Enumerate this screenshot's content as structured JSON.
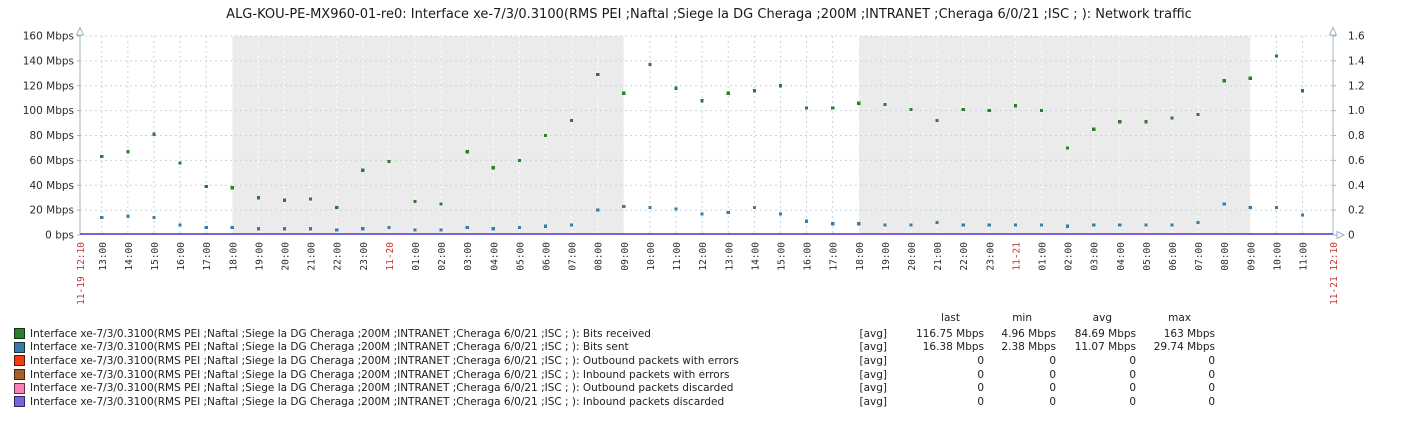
{
  "title": "ALG-KOU-PE-MX960-01-re0: Interface xe-7/3/0.3100(RMS PEI ;Naftal ;Siege la DG Cheraga ;200M ;INTRANET ;Cheraga 6/0/21 ;ISC ; ): Network traffic",
  "colors": {
    "band": "#EBEBEB",
    "grid": "#C9D5DD",
    "grid_on_band": "#FFFFFF",
    "axis": "#9FB4C2",
    "tick_text": "#2B2B2B",
    "date_text_red": "#C63535",
    "zero_line": "#5B53C8",
    "bits_received": "#2E7D2B",
    "bits_sent": "#3A7CA8",
    "outbound_errors": "#F23A14",
    "inbound_errors": "#A4612C",
    "outbound_discarded": "#FB7EB6",
    "inbound_discarded": "#7A63DB"
  },
  "chart_data": {
    "type": "scatter",
    "title": "ALG-KOU-PE-MX960-01-re0: Interface xe-7/3/0.3100(RMS PEI ;Naftal ;Siege la DG Cheraga ;200M ;INTRANET ;Cheraga 6/0/21 ;ISC ; ): Network traffic",
    "grid": true,
    "legend_position": "bottom",
    "x_axis": {
      "start_label": "11-19 12:10",
      "end_label": "11-21 12:10",
      "span_minutes": 2880
    },
    "ylim_left": [
      0,
      160
    ],
    "ylim_right": [
      0,
      1.6
    ],
    "y_unit_left": "Mbps",
    "y_ticks_left": [
      "0 bps",
      "20 Mbps",
      "40 Mbps",
      "60 Mbps",
      "80 Mbps",
      "100 Mbps",
      "120 Mbps",
      "140 Mbps",
      "160 Mbps"
    ],
    "y_ticks_right": [
      "0",
      "0.2",
      "0.4",
      "0.6",
      "0.8",
      "1.0",
      "1.2",
      "1.4",
      "1.6"
    ],
    "non_working_bands_minutes": [
      [
        350,
        1250
      ],
      [
        1790,
        2690
      ]
    ],
    "x_ticks": [
      {
        "t": 0,
        "label": "11-19 12:10",
        "red": true
      },
      {
        "t": 50,
        "label": "13:00"
      },
      {
        "t": 110,
        "label": "14:00"
      },
      {
        "t": 170,
        "label": "15:00"
      },
      {
        "t": 230,
        "label": "16:00"
      },
      {
        "t": 290,
        "label": "17:00"
      },
      {
        "t": 350,
        "label": "18:00"
      },
      {
        "t": 410,
        "label": "19:00"
      },
      {
        "t": 470,
        "label": "20:00"
      },
      {
        "t": 530,
        "label": "21:00"
      },
      {
        "t": 590,
        "label": "22:00"
      },
      {
        "t": 650,
        "label": "23:00"
      },
      {
        "t": 710,
        "label": "11-20",
        "red": true
      },
      {
        "t": 770,
        "label": "01:00"
      },
      {
        "t": 830,
        "label": "02:00"
      },
      {
        "t": 890,
        "label": "03:00"
      },
      {
        "t": 950,
        "label": "04:00"
      },
      {
        "t": 1010,
        "label": "05:00"
      },
      {
        "t": 1070,
        "label": "06:00"
      },
      {
        "t": 1130,
        "label": "07:00"
      },
      {
        "t": 1190,
        "label": "08:00"
      },
      {
        "t": 1250,
        "label": "09:00"
      },
      {
        "t": 1310,
        "label": "10:00"
      },
      {
        "t": 1370,
        "label": "11:00"
      },
      {
        "t": 1430,
        "label": "12:00"
      },
      {
        "t": 1490,
        "label": "13:00"
      },
      {
        "t": 1550,
        "label": "14:00"
      },
      {
        "t": 1610,
        "label": "15:00"
      },
      {
        "t": 1670,
        "label": "16:00"
      },
      {
        "t": 1730,
        "label": "17:00"
      },
      {
        "t": 1790,
        "label": "18:00"
      },
      {
        "t": 1850,
        "label": "19:00"
      },
      {
        "t": 1910,
        "label": "20:00"
      },
      {
        "t": 1970,
        "label": "21:00"
      },
      {
        "t": 2030,
        "label": "22:00"
      },
      {
        "t": 2090,
        "label": "23:00"
      },
      {
        "t": 2150,
        "label": "11-21",
        "red": true
      },
      {
        "t": 2210,
        "label": "01:00"
      },
      {
        "t": 2270,
        "label": "02:00"
      },
      {
        "t": 2330,
        "label": "03:00"
      },
      {
        "t": 2390,
        "label": "04:00"
      },
      {
        "t": 2450,
        "label": "05:00"
      },
      {
        "t": 2510,
        "label": "06:00"
      },
      {
        "t": 2570,
        "label": "07:00"
      },
      {
        "t": 2630,
        "label": "08:00"
      },
      {
        "t": 2690,
        "label": "09:00"
      },
      {
        "t": 2750,
        "label": "10:00"
      },
      {
        "t": 2810,
        "label": "11:00"
      },
      {
        "t": 2880,
        "label": "11-21 12:10",
        "red": true
      }
    ],
    "sample_minutes": [
      50,
      110,
      170,
      230,
      290,
      350,
      410,
      470,
      530,
      590,
      650,
      710,
      770,
      830,
      890,
      950,
      1010,
      1070,
      1130,
      1190,
      1250,
      1310,
      1370,
      1430,
      1490,
      1550,
      1610,
      1670,
      1730,
      1790,
      1850,
      1910,
      1970,
      2030,
      2090,
      2150,
      2210,
      2270,
      2330,
      2390,
      2450,
      2510,
      2570,
      2630,
      2690,
      2750,
      2810
    ],
    "series": [
      {
        "name": "Bits received",
        "unit": "Mbps",
        "color": "#2E7D2B",
        "values": [
          63,
          67,
          81,
          58,
          39,
          38,
          30,
          28,
          29,
          22,
          52,
          59,
          27,
          25,
          67,
          54,
          60,
          80,
          92,
          129,
          114,
          137,
          118,
          108,
          114,
          116,
          120,
          102,
          102,
          106,
          105,
          101,
          92,
          101,
          100,
          104,
          100,
          70,
          85,
          91,
          91,
          94,
          97,
          124,
          126,
          144,
          116
        ]
      },
      {
        "name": "Bits sent",
        "unit": "Mbps",
        "color": "#3A7CA8",
        "values": [
          14,
          15,
          14,
          8,
          6,
          6,
          5,
          5,
          5,
          4,
          5,
          6,
          4,
          4,
          6,
          5,
          6,
          7,
          8,
          20,
          23,
          22,
          21,
          17,
          18,
          22,
          17,
          11,
          9,
          9,
          8,
          8,
          10,
          8,
          8,
          8,
          8,
          7,
          8,
          8,
          8,
          8,
          10,
          25,
          22,
          22,
          16
        ]
      },
      {
        "name": "Outbound packets with errors",
        "color": "#F23A14",
        "constant_value": 0
      },
      {
        "name": "Inbound packets with errors",
        "color": "#A4612C",
        "constant_value": 0
      },
      {
        "name": "Outbound packets discarded",
        "color": "#FB7EB6",
        "constant_value": 0
      },
      {
        "name": "Inbound packets discarded",
        "color": "#7A63DB",
        "constant_value": 0
      }
    ]
  },
  "legend": {
    "stat_headers": [
      "last",
      "min",
      "avg",
      "max"
    ],
    "rows": [
      {
        "key": "bits-received",
        "color": "#2E7D2B",
        "label": "Interface xe-7/3/0.3100(RMS PEI ;Naftal ;Siege la DG Cheraga ;200M ;INTRANET ;Cheraga 6/0/21 ;ISC ; ): Bits received",
        "func": "[avg]",
        "last": "116.75 Mbps",
        "min": "4.96 Mbps",
        "avg": "84.69 Mbps",
        "max": "163 Mbps"
      },
      {
        "key": "bits-sent",
        "color": "#3A7CA8",
        "label": "Interface xe-7/3/0.3100(RMS PEI ;Naftal ;Siege la DG Cheraga ;200M ;INTRANET ;Cheraga 6/0/21 ;ISC ; ): Bits sent",
        "func": "[avg]",
        "last": "16.38 Mbps",
        "min": "2.38 Mbps",
        "avg": "11.07 Mbps",
        "max": "29.74 Mbps"
      },
      {
        "key": "outbound-packets-errors",
        "color": "#F23A14",
        "label": "Interface xe-7/3/0.3100(RMS PEI ;Naftal ;Siege la DG Cheraga ;200M ;INTRANET ;Cheraga 6/0/21 ;ISC ; ): Outbound packets with errors",
        "func": "[avg]",
        "last": "0",
        "min": "0",
        "avg": "0",
        "max": "0"
      },
      {
        "key": "inbound-packets-errors",
        "color": "#A4612C",
        "label": "Interface xe-7/3/0.3100(RMS PEI ;Naftal ;Siege la DG Cheraga ;200M ;INTRANET ;Cheraga 6/0/21 ;ISC ; ): Inbound packets with errors",
        "func": "[avg]",
        "last": "0",
        "min": "0",
        "avg": "0",
        "max": "0"
      },
      {
        "key": "outbound-packets-discarded",
        "color": "#FB7EB6",
        "label": "Interface xe-7/3/0.3100(RMS PEI ;Naftal ;Siege la DG Cheraga ;200M ;INTRANET ;Cheraga 6/0/21 ;ISC ; ): Outbound packets discarded",
        "func": "[avg]",
        "last": "0",
        "min": "0",
        "avg": "0",
        "max": "0"
      },
      {
        "key": "inbound-packets-discarded",
        "color": "#7A63DB",
        "label": "Interface xe-7/3/0.3100(RMS PEI ;Naftal ;Siege la DG Cheraga ;200M ;INTRANET ;Cheraga 6/0/21 ;ISC ; ): Inbound packets discarded",
        "func": "[avg]",
        "last": "0",
        "min": "0",
        "avg": "0",
        "max": "0"
      }
    ]
  }
}
